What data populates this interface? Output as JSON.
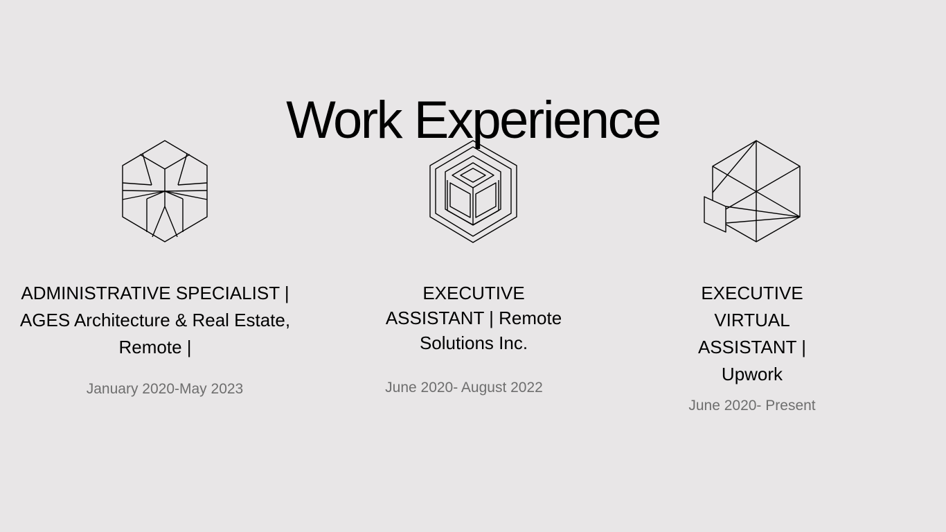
{
  "page": {
    "title": "Work Experience",
    "background": "#e8e6e7",
    "text_color": "#000000",
    "date_color": "#6e6e6e"
  },
  "experiences": [
    {
      "icon": "star-hexagon-icon",
      "role": "ADMINISTRATIVE SPECIALIST | AGES Architecture & Real Estate, Remote |",
      "dates": "January 2020-May 2023"
    },
    {
      "icon": "nested-cube-icon",
      "role": "EXECUTIVE ASSISTANT | Remote Solutions Inc.",
      "dates": "June 2020- August 2022"
    },
    {
      "icon": "wireframe-hexagon-icon",
      "role": "EXECUTIVE VIRTUAL ASSISTANT | Upwork",
      "dates": "June 2020- Present"
    }
  ]
}
